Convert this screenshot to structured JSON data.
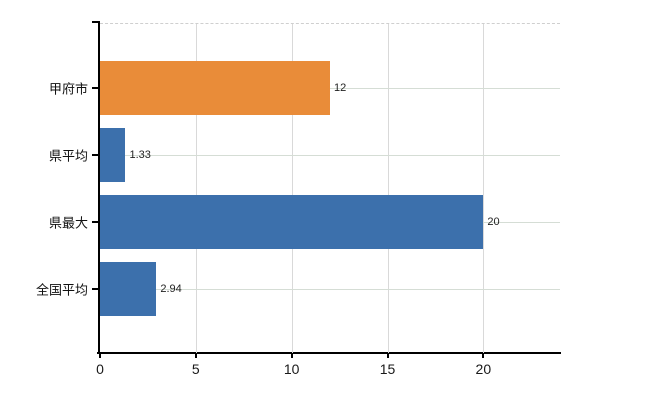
{
  "chart_data": {
    "type": "bar",
    "orientation": "horizontal",
    "title": "",
    "categories": [
      "甲府市",
      "県平均",
      "県最大",
      "全国平均"
    ],
    "values": [
      12,
      1.33,
      20,
      2.94
    ],
    "value_labels": [
      "12",
      "1.33",
      "20",
      "2.94"
    ],
    "bar_colors": [
      "#e98c39",
      "#3c70ac",
      "#3c70ac",
      "#3c70ac"
    ],
    "x_ticks": [
      0,
      5,
      10,
      15,
      20
    ],
    "x_tick_labels": [
      "0",
      "5",
      "10",
      "15",
      "20"
    ],
    "xlim": [
      0,
      24
    ],
    "grid": "on",
    "legend": "none",
    "gridline_at_each_category": true,
    "top_border_style": "dashed",
    "colors": {
      "bar_orange": "#e98c39",
      "bar_blue": "#3c70ac",
      "axis": "#000000",
      "grid_vertical": "#d9d9d9",
      "grid_horizontal": "#d5ddd5",
      "top_border": "#cfcfcf",
      "value_text": "#222222",
      "category_text": "#111111",
      "tick_text": "#1a1a1a",
      "background": "#ffffff"
    }
  }
}
